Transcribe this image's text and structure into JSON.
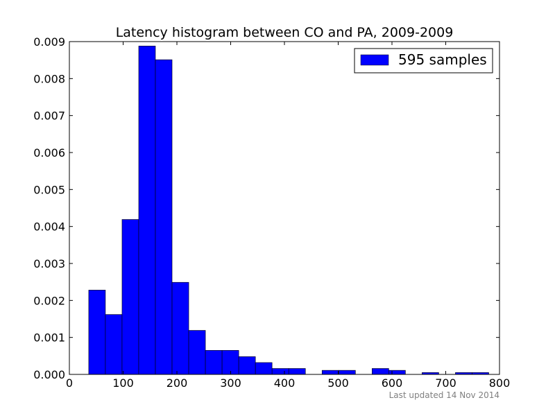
{
  "chart_data": {
    "type": "bar",
    "title": "Latency histogram between CO and PA, 2009-2009",
    "xlabel": "",
    "ylabel": "",
    "xlim": [
      0,
      800
    ],
    "ylim": [
      0,
      0.009
    ],
    "grid": false,
    "legend_position": "top-right",
    "x_ticks": [
      "0",
      "100",
      "200",
      "300",
      "400",
      "500",
      "600",
      "700",
      "800"
    ],
    "y_ticks": [
      "0.000",
      "0.001",
      "0.002",
      "0.003",
      "0.004",
      "0.005",
      "0.006",
      "0.007",
      "0.008",
      "0.009"
    ],
    "series": [
      {
        "name": "595 samples",
        "color": "#0000ff",
        "bins": [
          {
            "x0": 36,
            "x1": 67,
            "value": 0.00228
          },
          {
            "x0": 67,
            "x1": 98,
            "value": 0.00162
          },
          {
            "x0": 98,
            "x1": 129,
            "value": 0.00419
          },
          {
            "x0": 129,
            "x1": 160,
            "value": 0.00888
          },
          {
            "x0": 160,
            "x1": 191,
            "value": 0.00851
          },
          {
            "x0": 191,
            "x1": 222,
            "value": 0.00249
          },
          {
            "x0": 222,
            "x1": 253,
            "value": 0.00119
          },
          {
            "x0": 253,
            "x1": 284,
            "value": 0.00065
          },
          {
            "x0": 284,
            "x1": 315,
            "value": 0.00065
          },
          {
            "x0": 315,
            "x1": 346,
            "value": 0.00048
          },
          {
            "x0": 346,
            "x1": 377,
            "value": 0.00032
          },
          {
            "x0": 377,
            "x1": 408,
            "value": 0.00016
          },
          {
            "x0": 408,
            "x1": 439,
            "value": 0.00016
          },
          {
            "x0": 439,
            "x1": 470,
            "value": 0.0
          },
          {
            "x0": 470,
            "x1": 501,
            "value": 0.00011
          },
          {
            "x0": 501,
            "x1": 532,
            "value": 0.00011
          },
          {
            "x0": 532,
            "x1": 563,
            "value": 0.0
          },
          {
            "x0": 563,
            "x1": 594,
            "value": 0.00016
          },
          {
            "x0": 594,
            "x1": 625,
            "value": 0.00011
          },
          {
            "x0": 625,
            "x1": 656,
            "value": 0.0
          },
          {
            "x0": 656,
            "x1": 687,
            "value": 5e-05
          },
          {
            "x0": 687,
            "x1": 718,
            "value": 0.0
          },
          {
            "x0": 718,
            "x1": 749,
            "value": 5e-05
          },
          {
            "x0": 749,
            "x1": 780,
            "value": 5e-05
          }
        ]
      }
    ]
  },
  "footer": {
    "text": "Last updated 14 Nov 2014"
  }
}
